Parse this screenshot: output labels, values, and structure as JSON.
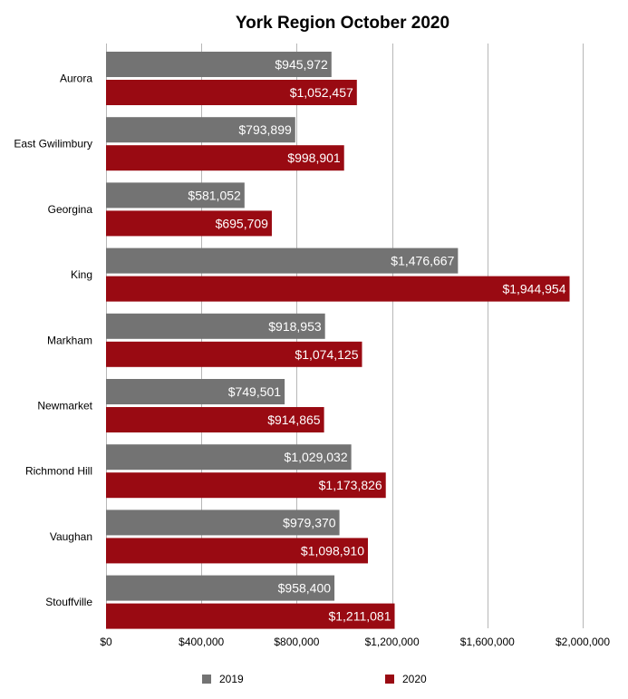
{
  "chart_data": {
    "type": "bar",
    "orientation": "horizontal",
    "title": "York Region October 2020",
    "xlabel": "",
    "ylabel": "",
    "categories": [
      "Aurora",
      "East Gwilimbury",
      "Georgina",
      "King",
      "Markham",
      "Newmarket",
      "Richmond Hill",
      "Vaughan",
      "Stouffville"
    ],
    "series": [
      {
        "name": "2019",
        "color": "#737373",
        "values": [
          945972,
          793899,
          581052,
          1476667,
          918953,
          749501,
          1029032,
          979370,
          958400
        ],
        "labels": [
          "$945,972",
          "$793,899",
          "$581,052",
          "$1,476,667",
          "$918,953",
          "$749,501",
          "$1,029,032",
          "$979,370",
          "$958,400"
        ]
      },
      {
        "name": "2020",
        "color": "#990a12",
        "values": [
          1052457,
          998901,
          695709,
          1944954,
          1074125,
          914865,
          1173826,
          1098910,
          1211081
        ],
        "labels": [
          "$1,052,457",
          "$998,901",
          "$695,709",
          "$1,944,954",
          "$1,074,125",
          "$914,865",
          "$1,173,826",
          "$1,098,910",
          "$1,211,081"
        ]
      }
    ],
    "xlim": [
      0,
      2000000
    ],
    "xticks": [
      0,
      400000,
      800000,
      1200000,
      1600000,
      2000000
    ],
    "xtick_labels": [
      "$0",
      "$400,000",
      "$800,000",
      "$1,200,000",
      "$1,600,000",
      "$2,000,000"
    ],
    "grid": "vertical",
    "legend": "bottom"
  }
}
